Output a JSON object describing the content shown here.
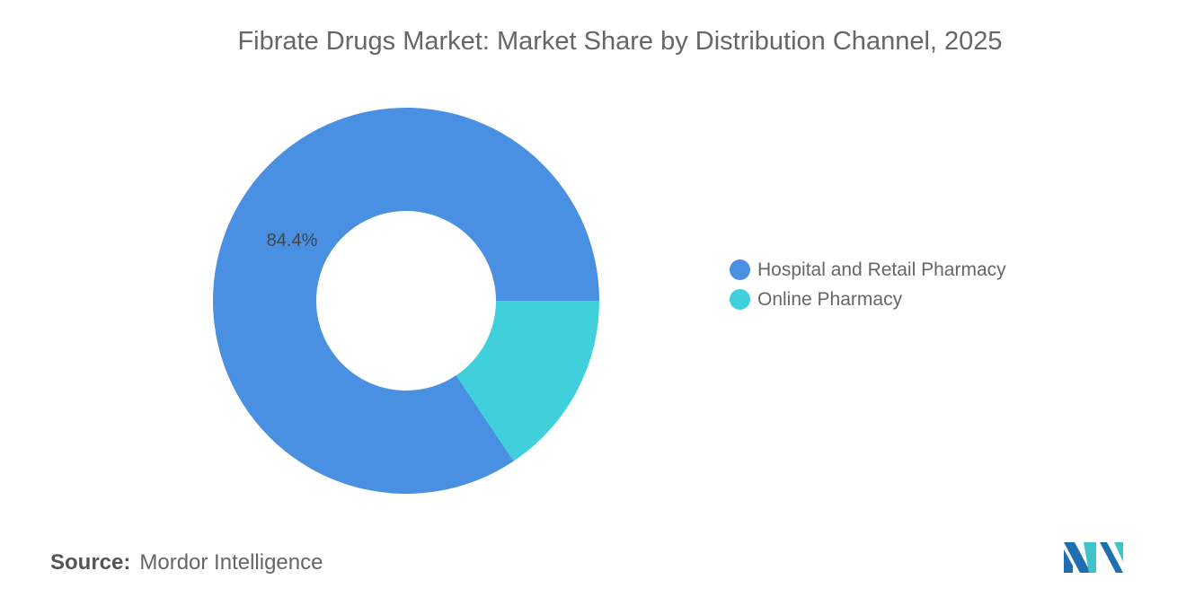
{
  "title": "Fibrate Drugs Market: Market Share by Distribution Channel, 2025",
  "chart_data": {
    "type": "pie",
    "donut": true,
    "title": "Fibrate Drugs Market: Market Share by Distribution Channel, 2025",
    "categories": [
      "Hospital and Retail Pharmacy",
      "Online Pharmacy"
    ],
    "values": [
      84.4,
      15.6
    ],
    "colors": [
      "#4a90e2",
      "#3fd0db"
    ],
    "data_labels": [
      "84.4%",
      ""
    ],
    "legend_position": "right"
  },
  "source": {
    "label": "Source:",
    "value": "Mordor Intelligence"
  }
}
